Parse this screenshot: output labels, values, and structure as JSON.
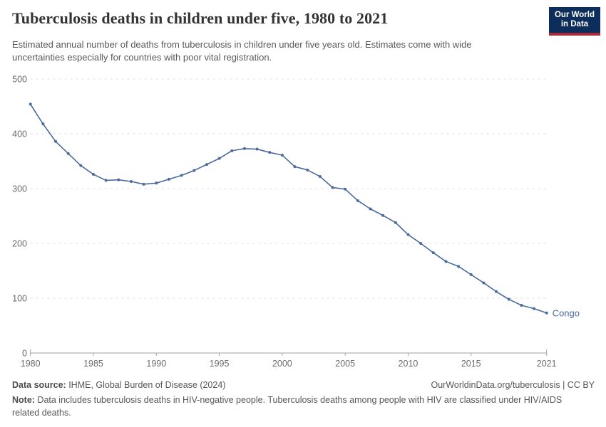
{
  "header": {
    "title": "Tuberculosis deaths in children under five, 1980 to 2021",
    "subtitle": "Estimated annual number of deaths from tuberculosis in children under five years old. Estimates come with wide uncertainties especially for countries with poor vital registration.",
    "logo": {
      "line1": "Our World",
      "line2": "in Data",
      "bg_color": "#0d2e5a",
      "stripe_color": "#a52c39"
    }
  },
  "chart_data": {
    "type": "line",
    "title": "Tuberculosis deaths in children under five, 1980 to 2021",
    "xlabel": "",
    "ylabel": "",
    "xlim": [
      1980,
      2021
    ],
    "ylim": [
      0,
      500
    ],
    "x_ticks": [
      1980,
      1985,
      1990,
      1995,
      2000,
      2005,
      2010,
      2015,
      2021
    ],
    "y_ticks": [
      0,
      100,
      200,
      300,
      400,
      500
    ],
    "grid": "horizontal-dashed",
    "legend_position": "end-of-line-label",
    "x": [
      1980,
      1981,
      1982,
      1983,
      1984,
      1985,
      1986,
      1987,
      1988,
      1989,
      1990,
      1991,
      1992,
      1993,
      1994,
      1995,
      1996,
      1997,
      1998,
      1999,
      2000,
      2001,
      2002,
      2003,
      2004,
      2005,
      2006,
      2007,
      2008,
      2009,
      2010,
      2011,
      2012,
      2013,
      2014,
      2015,
      2016,
      2017,
      2018,
      2019,
      2020,
      2021
    ],
    "series": [
      {
        "name": "Congo",
        "color": "#4c6a9c",
        "values": [
          454,
          418,
          386,
          364,
          342,
          326,
          315,
          316,
          313,
          308,
          310,
          317,
          324,
          333,
          344,
          355,
          369,
          373,
          372,
          366,
          361,
          340,
          334,
          322,
          302,
          299,
          278,
          263,
          251,
          238,
          216,
          200,
          183,
          167,
          158,
          143,
          128,
          112,
          98,
          87,
          81,
          73
        ]
      }
    ],
    "colors": {
      "gridline": "#dddddd",
      "axis": "#a3a3a3",
      "tick_label": "#6b6b6b"
    }
  },
  "footer": {
    "datasource_label": "Data source:",
    "datasource_text": " IHME, Global Burden of Disease (2024)",
    "rights": "OurWorldinData.org/tuberculosis | CC BY",
    "note_label": "Note:",
    "note_text": " Data includes tuberculosis deaths in HIV-negative people. Tuberculosis deaths among people with HIV are classified under HIV/AIDS related deaths."
  }
}
